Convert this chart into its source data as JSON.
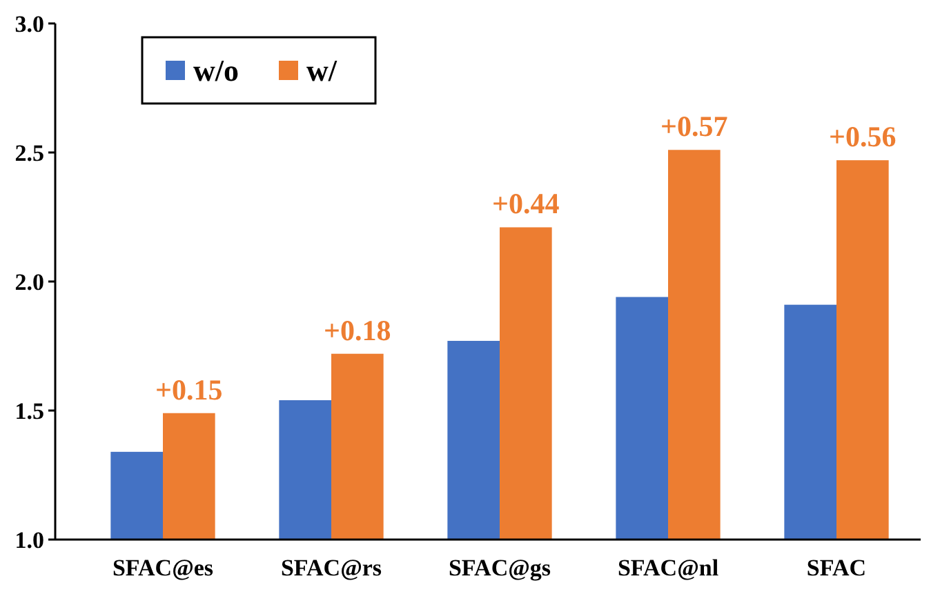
{
  "chart_data": {
    "type": "bar",
    "categories": [
      "SFAC@es",
      "SFAC@rs",
      "SFAC@gs",
      "SFAC@nl",
      "SFAC"
    ],
    "series": [
      {
        "name": "w/o",
        "color": "#4472c4",
        "values": [
          1.34,
          1.54,
          1.77,
          1.94,
          1.91
        ]
      },
      {
        "name": "w/",
        "color": "#ed7d31",
        "values": [
          1.49,
          1.72,
          2.21,
          2.51,
          2.47
        ]
      }
    ],
    "annotations": [
      {
        "text": "+0.15",
        "x": "SFAC@es",
        "y": 1.49
      },
      {
        "text": "+0.18",
        "x": "SFAC@rs",
        "y": 1.72
      },
      {
        "text": "+0.44",
        "x": "SFAC@gs",
        "y": 2.21
      },
      {
        "text": "+0.57",
        "x": "SFAC@nl",
        "y": 2.51
      },
      {
        "text": "+0.56",
        "x": "SFAC",
        "y": 2.47
      }
    ],
    "ylim": [
      1.0,
      3.0
    ],
    "yticks": [
      {
        "value": 1.0,
        "label": "1.0"
      },
      {
        "value": 1.5,
        "label": "1.5"
      },
      {
        "value": 2.0,
        "label": "2.0"
      },
      {
        "value": 2.5,
        "label": "2.5"
      },
      {
        "value": 3.0,
        "label": "3.0"
      }
    ],
    "grid": false,
    "legend": "top left"
  }
}
